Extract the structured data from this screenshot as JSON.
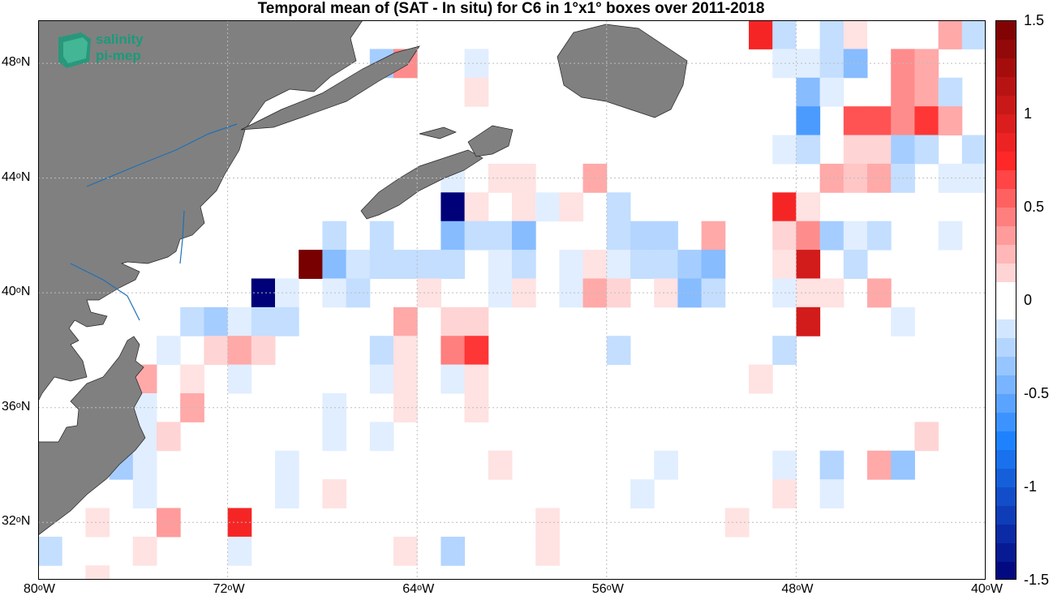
{
  "title": "Temporal mean of (SAT - In situ) for C6 in 1°x1° boxes over 2011-2018",
  "logo": {
    "line1": "salinity",
    "line2": "pi-mep",
    "color": "#1a9b7a"
  },
  "colors": {
    "land": "#808080",
    "rivers": "#1f6fb4",
    "grid": "#bdbdbd",
    "background": "#ffffff"
  },
  "map": {
    "lon_range": [
      -80,
      -40
    ],
    "lat_range": [
      30,
      49.5
    ],
    "lat_ticks": [
      {
        "v": 48,
        "label": "48",
        "hemi": "N"
      },
      {
        "v": 44,
        "label": "44",
        "hemi": "N"
      },
      {
        "v": 40,
        "label": "40",
        "hemi": "N"
      },
      {
        "v": 36,
        "label": "36",
        "hemi": "N"
      },
      {
        "v": 32,
        "label": "32",
        "hemi": "N"
      }
    ],
    "lon_ticks": [
      {
        "v": -80,
        "label": "80",
        "hemi": "W"
      },
      {
        "v": -72,
        "label": "72",
        "hemi": "W"
      },
      {
        "v": -64,
        "label": "64",
        "hemi": "W"
      },
      {
        "v": -56,
        "label": "56",
        "hemi": "W"
      },
      {
        "v": -48,
        "label": "48",
        "hemi": "W"
      },
      {
        "v": -40,
        "label": "40",
        "hemi": "W"
      }
    ],
    "grid": "dotted"
  },
  "colorbar": {
    "range": [
      -1.5,
      1.5
    ],
    "ticks": [
      "1.5",
      "1",
      "0.5",
      "0",
      "-0.5",
      "-1",
      "-1.5"
    ],
    "tick_values": [
      1.5,
      1,
      0.5,
      0,
      -0.5,
      -1,
      -1.5
    ]
  },
  "chart_data": {
    "type": "heatmap",
    "title": "Temporal mean of (SAT - In situ) for C6 in 1°x1° boxes over 2011-2018",
    "xlabel": "",
    "ylabel": "",
    "xlim": [
      -80,
      -40
    ],
    "ylim": [
      30,
      49.5
    ],
    "colorbar_range": [
      -1.5,
      1.5
    ],
    "cells": [
      {
        "lon": -49.5,
        "lat": 49,
        "v": 0.8
      },
      {
        "lon": -48.5,
        "lat": 49,
        "v": -0.2
      },
      {
        "lon": -47.5,
        "lat": 49,
        "v": 0
      },
      {
        "lon": -46.5,
        "lat": 49,
        "v": -0.2
      },
      {
        "lon": -45.5,
        "lat": 49,
        "v": 0.1
      },
      {
        "lon": -44.5,
        "lat": 49,
        "v": 0
      },
      {
        "lon": -43.5,
        "lat": 49,
        "v": 0
      },
      {
        "lon": -42.5,
        "lat": 49,
        "v": 0
      },
      {
        "lon": -41.5,
        "lat": 49,
        "v": 0.3
      },
      {
        "lon": -40.5,
        "lat": 49,
        "v": -0.2
      },
      {
        "lon": -65.5,
        "lat": 48,
        "v": -0.3
      },
      {
        "lon": -64.5,
        "lat": 48,
        "v": 0.4
      },
      {
        "lon": -61.5,
        "lat": 48,
        "v": -0.1
      },
      {
        "lon": -48.5,
        "lat": 48,
        "v": -0.1
      },
      {
        "lon": -47.5,
        "lat": 48,
        "v": -0.1
      },
      {
        "lon": -46.5,
        "lat": 48,
        "v": -0.2
      },
      {
        "lon": -45.5,
        "lat": 48,
        "v": -0.4
      },
      {
        "lon": -43.5,
        "lat": 48,
        "v": 0.4
      },
      {
        "lon": -42.5,
        "lat": 48,
        "v": 0.3
      },
      {
        "lon": -61.5,
        "lat": 47,
        "v": 0.1
      },
      {
        "lon": -47.5,
        "lat": 47,
        "v": -0.4
      },
      {
        "lon": -46.5,
        "lat": 47,
        "v": -0.1
      },
      {
        "lon": -43.5,
        "lat": 47,
        "v": 0.4
      },
      {
        "lon": -42.5,
        "lat": 47,
        "v": 0.3
      },
      {
        "lon": -41.5,
        "lat": 47,
        "v": -0.2
      },
      {
        "lon": -47.5,
        "lat": 46,
        "v": -0.6
      },
      {
        "lon": -45.5,
        "lat": 46,
        "v": 0.6
      },
      {
        "lon": -44.5,
        "lat": 46,
        "v": 0.6
      },
      {
        "lon": -43.5,
        "lat": 46,
        "v": 0.4
      },
      {
        "lon": -42.5,
        "lat": 46,
        "v": 0.7
      },
      {
        "lon": -41.5,
        "lat": 46,
        "v": 0.3
      },
      {
        "lon": -48.5,
        "lat": 45,
        "v": -0.1
      },
      {
        "lon": -47.5,
        "lat": 45,
        "v": -0.2
      },
      {
        "lon": -45.5,
        "lat": 45,
        "v": 0.15
      },
      {
        "lon": -44.5,
        "lat": 45,
        "v": 0.15
      },
      {
        "lon": -43.5,
        "lat": 45,
        "v": -0.3
      },
      {
        "lon": -42.5,
        "lat": 45,
        "v": -0.2
      },
      {
        "lon": -40.5,
        "lat": 45,
        "v": -0.2
      },
      {
        "lon": -62.5,
        "lat": 44,
        "v": -0.1
      },
      {
        "lon": -60.5,
        "lat": 44,
        "v": 0.1
      },
      {
        "lon": -59.5,
        "lat": 44,
        "v": 0.1
      },
      {
        "lon": -56.5,
        "lat": 44,
        "v": 0.3
      },
      {
        "lon": -46.5,
        "lat": 44,
        "v": 0.3
      },
      {
        "lon": -45.5,
        "lat": 44,
        "v": 0.2
      },
      {
        "lon": -44.5,
        "lat": 44,
        "v": 0.3
      },
      {
        "lon": -43.5,
        "lat": 44,
        "v": -0.2
      },
      {
        "lon": -41.5,
        "lat": 44,
        "v": -0.1
      },
      {
        "lon": -40.5,
        "lat": 44,
        "v": -0.1
      },
      {
        "lon": -62.5,
        "lat": 43,
        "v": -1.5
      },
      {
        "lon": -61.5,
        "lat": 43,
        "v": 0.1
      },
      {
        "lon": -59.5,
        "lat": 43,
        "v": 0.1
      },
      {
        "lon": -58.5,
        "lat": 43,
        "v": -0.1
      },
      {
        "lon": -57.5,
        "lat": 43,
        "v": 0.1
      },
      {
        "lon": -55.5,
        "lat": 43,
        "v": -0.2
      },
      {
        "lon": -48.5,
        "lat": 43,
        "v": 0.8
      },
      {
        "lon": -47.5,
        "lat": 43,
        "v": 0.1
      },
      {
        "lon": -67.5,
        "lat": 42,
        "v": -0.2
      },
      {
        "lon": -65.5,
        "lat": 42,
        "v": -0.2
      },
      {
        "lon": -62.5,
        "lat": 42,
        "v": -0.4
      },
      {
        "lon": -61.5,
        "lat": 42,
        "v": -0.2
      },
      {
        "lon": -60.5,
        "lat": 42,
        "v": -0.2
      },
      {
        "lon": -59.5,
        "lat": 42,
        "v": -0.4
      },
      {
        "lon": -55.5,
        "lat": 42,
        "v": -0.2
      },
      {
        "lon": -54.5,
        "lat": 42,
        "v": -0.25
      },
      {
        "lon": -53.5,
        "lat": 42,
        "v": -0.25
      },
      {
        "lon": -51.5,
        "lat": 42,
        "v": 0.3
      },
      {
        "lon": -48.5,
        "lat": 42,
        "v": 0.15
      },
      {
        "lon": -47.5,
        "lat": 42,
        "v": 0.4
      },
      {
        "lon": -46.5,
        "lat": 42,
        "v": -0.3
      },
      {
        "lon": -45.5,
        "lat": 42,
        "v": -0.1
      },
      {
        "lon": -44.5,
        "lat": 42,
        "v": -0.2
      },
      {
        "lon": -41.5,
        "lat": 42,
        "v": -0.1
      },
      {
        "lon": -68.5,
        "lat": 41,
        "v": 1.5
      },
      {
        "lon": -67.5,
        "lat": 41,
        "v": -0.4
      },
      {
        "lon": -66.5,
        "lat": 41,
        "v": -0.15
      },
      {
        "lon": -65.5,
        "lat": 41,
        "v": -0.2
      },
      {
        "lon": -64.5,
        "lat": 41,
        "v": -0.2
      },
      {
        "lon": -63.5,
        "lat": 41,
        "v": -0.2
      },
      {
        "lon": -62.5,
        "lat": 41,
        "v": -0.2
      },
      {
        "lon": -60.5,
        "lat": 41,
        "v": -0.1
      },
      {
        "lon": -59.5,
        "lat": 41,
        "v": -0.2
      },
      {
        "lon": -57.5,
        "lat": 41,
        "v": -0.1
      },
      {
        "lon": -56.5,
        "lat": 41,
        "v": 0.1
      },
      {
        "lon": -55.5,
        "lat": 41,
        "v": -0.1
      },
      {
        "lon": -54.5,
        "lat": 41,
        "v": -0.2
      },
      {
        "lon": -53.5,
        "lat": 41,
        "v": -0.2
      },
      {
        "lon": -52.5,
        "lat": 41,
        "v": -0.3
      },
      {
        "lon": -51.5,
        "lat": 41,
        "v": -0.4
      },
      {
        "lon": -48.5,
        "lat": 41,
        "v": 0.1
      },
      {
        "lon": -47.5,
        "lat": 41,
        "v": 1.0
      },
      {
        "lon": -45.5,
        "lat": 41,
        "v": -0.2
      },
      {
        "lon": -70.5,
        "lat": 40,
        "v": -1.5
      },
      {
        "lon": -69.5,
        "lat": 40,
        "v": -0.1
      },
      {
        "lon": -67.5,
        "lat": 40,
        "v": -0.1
      },
      {
        "lon": -66.5,
        "lat": 40,
        "v": -0.2
      },
      {
        "lon": -63.5,
        "lat": 40,
        "v": 0.1
      },
      {
        "lon": -60.5,
        "lat": 40,
        "v": -0.1
      },
      {
        "lon": -59.5,
        "lat": 40,
        "v": 0.1
      },
      {
        "lon": -57.5,
        "lat": 40,
        "v": -0.1
      },
      {
        "lon": -56.5,
        "lat": 40,
        "v": 0.3
      },
      {
        "lon": -55.5,
        "lat": 40,
        "v": 0.15
      },
      {
        "lon": -53.5,
        "lat": 40,
        "v": 0.1
      },
      {
        "lon": -52.5,
        "lat": 40,
        "v": -0.4
      },
      {
        "lon": -51.5,
        "lat": 40,
        "v": -0.2
      },
      {
        "lon": -48.5,
        "lat": 40,
        "v": -0.1
      },
      {
        "lon": -47.5,
        "lat": 40,
        "v": 0.1
      },
      {
        "lon": -46.5,
        "lat": 40,
        "v": 0.1
      },
      {
        "lon": -44.5,
        "lat": 40,
        "v": 0.3
      },
      {
        "lon": -73.5,
        "lat": 39,
        "v": -0.2
      },
      {
        "lon": -72.5,
        "lat": 39,
        "v": -0.3
      },
      {
        "lon": -71.5,
        "lat": 39,
        "v": -0.1
      },
      {
        "lon": -70.5,
        "lat": 39,
        "v": -0.2
      },
      {
        "lon": -69.5,
        "lat": 39,
        "v": -0.2
      },
      {
        "lon": -64.5,
        "lat": 39,
        "v": 0.3
      },
      {
        "lon": -62.5,
        "lat": 39,
        "v": 0.15
      },
      {
        "lon": -61.5,
        "lat": 39,
        "v": 0.15
      },
      {
        "lon": -47.5,
        "lat": 39,
        "v": 1.0
      },
      {
        "lon": -43.5,
        "lat": 39,
        "v": -0.1
      },
      {
        "lon": -74.5,
        "lat": 38,
        "v": -0.1
      },
      {
        "lon": -72.5,
        "lat": 38,
        "v": 0.15
      },
      {
        "lon": -71.5,
        "lat": 38,
        "v": 0.3
      },
      {
        "lon": -70.5,
        "lat": 38,
        "v": 0.15
      },
      {
        "lon": -65.5,
        "lat": 38,
        "v": -0.2
      },
      {
        "lon": -64.5,
        "lat": 38,
        "v": 0.1
      },
      {
        "lon": -62.5,
        "lat": 38,
        "v": 0.45
      },
      {
        "lon": -61.5,
        "lat": 38,
        "v": 0.7
      },
      {
        "lon": -55.5,
        "lat": 38,
        "v": -0.2
      },
      {
        "lon": -48.5,
        "lat": 38,
        "v": -0.2
      },
      {
        "lon": -75.5,
        "lat": 37,
        "v": 0.3
      },
      {
        "lon": -73.5,
        "lat": 37,
        "v": 0.1
      },
      {
        "lon": -71.5,
        "lat": 37,
        "v": -0.1
      },
      {
        "lon": -65.5,
        "lat": 37,
        "v": -0.1
      },
      {
        "lon": -64.5,
        "lat": 37,
        "v": 0.1
      },
      {
        "lon": -62.5,
        "lat": 37,
        "v": -0.1
      },
      {
        "lon": -61.5,
        "lat": 37,
        "v": 0.1
      },
      {
        "lon": -49.5,
        "lat": 37,
        "v": 0.1
      },
      {
        "lon": -75.5,
        "lat": 36,
        "v": -0.1
      },
      {
        "lon": -73.5,
        "lat": 36,
        "v": 0.3
      },
      {
        "lon": -67.5,
        "lat": 36,
        "v": -0.1
      },
      {
        "lon": -64.5,
        "lat": 36,
        "v": 0.1
      },
      {
        "lon": -61.5,
        "lat": 36,
        "v": 0.1
      },
      {
        "lon": -75.5,
        "lat": 35,
        "v": -0.1
      },
      {
        "lon": -74.5,
        "lat": 35,
        "v": 0.15
      },
      {
        "lon": -67.5,
        "lat": 35,
        "v": -0.1
      },
      {
        "lon": -65.5,
        "lat": 35,
        "v": -0.1
      },
      {
        "lon": -42.5,
        "lat": 35,
        "v": 0.15
      },
      {
        "lon": -76.5,
        "lat": 34,
        "v": -0.3
      },
      {
        "lon": -75.5,
        "lat": 34,
        "v": -0.1
      },
      {
        "lon": -69.5,
        "lat": 34,
        "v": -0.1
      },
      {
        "lon": -60.5,
        "lat": 34,
        "v": 0.1
      },
      {
        "lon": -53.5,
        "lat": 34,
        "v": -0.1
      },
      {
        "lon": -48.5,
        "lat": 34,
        "v": -0.1
      },
      {
        "lon": -46.5,
        "lat": 34,
        "v": -0.25
      },
      {
        "lon": -44.5,
        "lat": 34,
        "v": 0.3
      },
      {
        "lon": -43.5,
        "lat": 34,
        "v": -0.35
      },
      {
        "lon": -75.5,
        "lat": 33,
        "v": -0.1
      },
      {
        "lon": -69.5,
        "lat": 33,
        "v": -0.1
      },
      {
        "lon": -67.5,
        "lat": 33,
        "v": 0.1
      },
      {
        "lon": -54.5,
        "lat": 33,
        "v": -0.1
      },
      {
        "lon": -48.5,
        "lat": 33,
        "v": 0.1
      },
      {
        "lon": -46.5,
        "lat": 33,
        "v": -0.1
      },
      {
        "lon": -77.5,
        "lat": 32,
        "v": 0.1
      },
      {
        "lon": -74.5,
        "lat": 32,
        "v": 0.35
      },
      {
        "lon": -71.5,
        "lat": 32,
        "v": 0.8
      },
      {
        "lon": -58.5,
        "lat": 32,
        "v": 0.1
      },
      {
        "lon": -50.5,
        "lat": 32,
        "v": 0.1
      },
      {
        "lon": -79.5,
        "lat": 31,
        "v": -0.2
      },
      {
        "lon": -75.5,
        "lat": 31,
        "v": 0.1
      },
      {
        "lon": -71.5,
        "lat": 31,
        "v": -0.1
      },
      {
        "lon": -64.5,
        "lat": 31,
        "v": 0.1
      },
      {
        "lon": -62.5,
        "lat": 31,
        "v": -0.25
      },
      {
        "lon": -58.5,
        "lat": 31,
        "v": 0.1
      },
      {
        "lon": -77.5,
        "lat": 30,
        "v": 0.1
      }
    ]
  }
}
